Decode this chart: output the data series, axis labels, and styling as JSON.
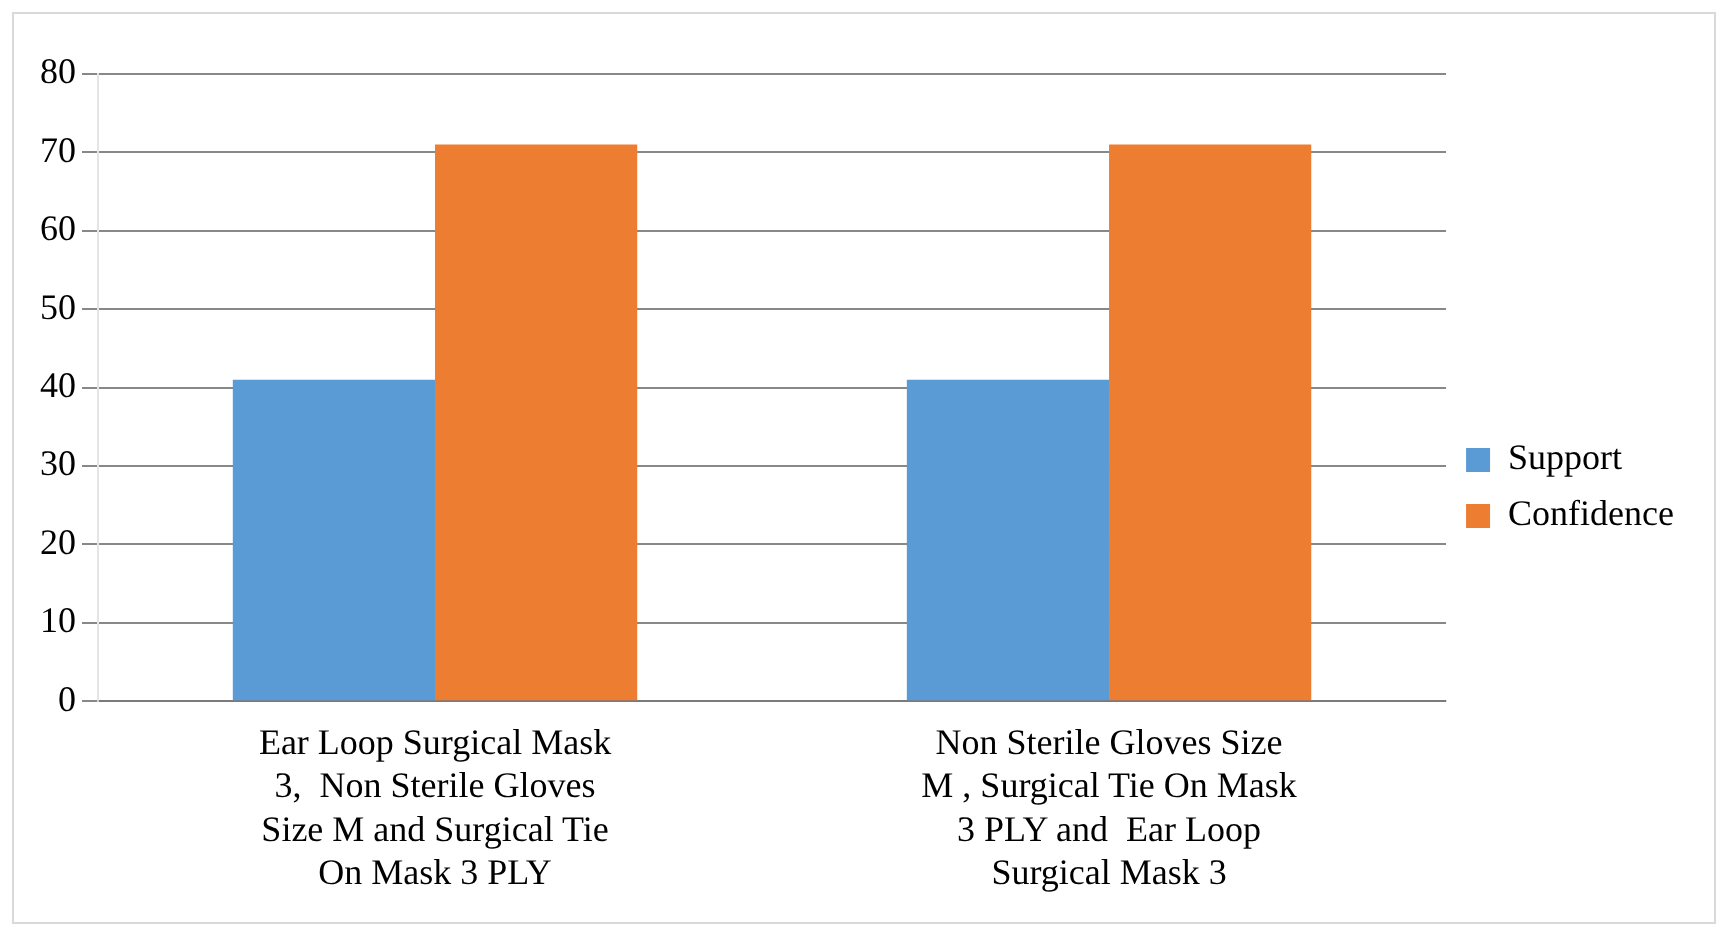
{
  "chart_data": {
    "type": "bar",
    "categories": [
      "Ear Loop Surgical Mask 3,  Non Sterile Gloves Size M and Surgical Tie On Mask 3 PLY",
      "Non Sterile Gloves Size M , Surgical Tie On Mask 3 PLY and  Ear Loop Surgical Mask 3"
    ],
    "series": [
      {
        "name": "Support",
        "color": "#5b9bd5",
        "values": [
          41,
          41
        ]
      },
      {
        "name": "Confidence",
        "color": "#ed7d31",
        "values": [
          71,
          71
        ]
      }
    ],
    "ylim": [
      0,
      80
    ],
    "yticks": [
      0,
      10,
      20,
      30,
      40,
      50,
      60,
      70,
      80
    ],
    "grid": "y",
    "legend": "right"
  }
}
